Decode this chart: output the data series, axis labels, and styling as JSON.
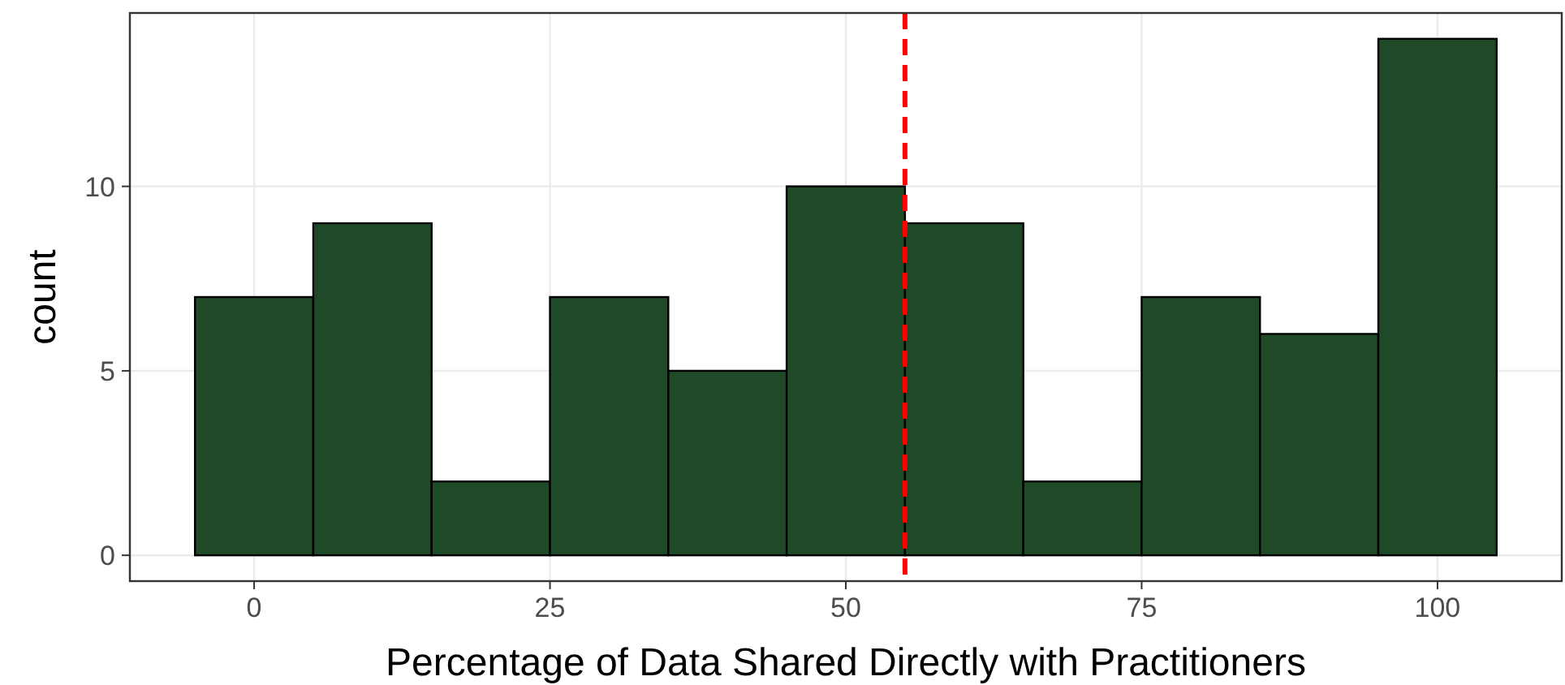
{
  "chart_data": {
    "type": "histogram",
    "xlabel": "Percentage of Data Shared Directly with Practitioners",
    "ylabel": "count",
    "bins": [
      -5,
      5,
      15,
      25,
      35,
      45,
      55,
      65,
      75,
      85,
      95,
      105
    ],
    "values": [
      7,
      9,
      2,
      7,
      5,
      10,
      9,
      2,
      7,
      6,
      14
    ],
    "color": "#1e4a28",
    "xlim": [
      -10.5,
      110.5
    ],
    "xticks": [
      0,
      25,
      50,
      75,
      100
    ],
    "ylim": [
      -0.7,
      14.7
    ],
    "yticks": [
      0,
      5,
      10
    ],
    "grid": true,
    "ref_lines": [
      {
        "axis": "x",
        "value": 55,
        "color": "#ff0000",
        "line_style": "dashed"
      }
    ]
  }
}
